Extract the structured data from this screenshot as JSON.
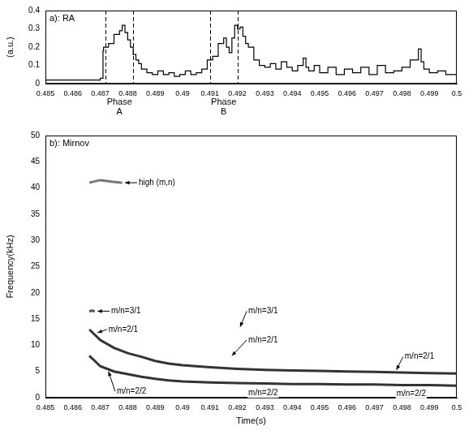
{
  "chart_data": [
    {
      "type": "line",
      "title": "a): RA",
      "y_label": "(a.u.)",
      "x": [
        0.485,
        0.4855,
        0.486,
        0.4865,
        0.487,
        0.4871,
        0.48712,
        0.4873,
        0.4875,
        0.4877,
        0.4878,
        0.4879,
        0.488,
        0.4881,
        0.4882,
        0.4883,
        0.4884,
        0.4885,
        0.4887,
        0.4889,
        0.4891,
        0.4893,
        0.4895,
        0.4897,
        0.4899,
        0.4901,
        0.4903,
        0.4905,
        0.4907,
        0.4909,
        0.4911,
        0.4913,
        0.4915,
        0.4916,
        0.4917,
        0.4918,
        0.4919,
        0.492,
        0.4921,
        0.4922,
        0.4923,
        0.4924,
        0.4926,
        0.4928,
        0.493,
        0.4932,
        0.4934,
        0.4936,
        0.4938,
        0.494,
        0.4942,
        0.4944,
        0.4945,
        0.4946,
        0.4948,
        0.495,
        0.4953,
        0.4956,
        0.4959,
        0.4962,
        0.4965,
        0.4968,
        0.4971,
        0.4974,
        0.4977,
        0.498,
        0.4983,
        0.4986,
        0.4987,
        0.4988,
        0.499,
        0.4993,
        0.4996,
        0.5
      ],
      "values": [
        0.02,
        0.02,
        0.02,
        0.02,
        0.02,
        0.03,
        0.18,
        0.2,
        0.22,
        0.27,
        0.29,
        0.32,
        0.28,
        0.24,
        0.2,
        0.16,
        0.13,
        0.11,
        0.08,
        0.06,
        0.05,
        0.07,
        0.05,
        0.06,
        0.04,
        0.05,
        0.07,
        0.05,
        0.06,
        0.08,
        0.13,
        0.15,
        0.22,
        0.25,
        0.2,
        0.17,
        0.25,
        0.32,
        0.3,
        0.31,
        0.26,
        0.22,
        0.2,
        0.13,
        0.1,
        0.09,
        0.11,
        0.08,
        0.12,
        0.09,
        0.07,
        0.1,
        0.14,
        0.09,
        0.07,
        0.1,
        0.06,
        0.09,
        0.05,
        0.08,
        0.06,
        0.09,
        0.05,
        0.1,
        0.06,
        0.07,
        0.09,
        0.13,
        0.19,
        0.12,
        0.08,
        0.06,
        0.07,
        0.05
      ],
      "color": "#000000",
      "line_style": "steps",
      "xlim": [
        0.485,
        0.5
      ],
      "xticks": [
        0.485,
        0.486,
        0.487,
        0.488,
        0.489,
        0.49,
        0.491,
        0.492,
        0.493,
        0.494,
        0.495,
        0.496,
        0.497,
        0.498,
        0.499,
        0.5
      ],
      "ylim": [
        0,
        0.4
      ],
      "yticks": [
        0,
        0.1,
        0.2,
        0.3,
        0.4
      ],
      "grid": false,
      "spans": [
        {
          "label": "Phase A",
          "from": 0.4872,
          "to": 0.4882
        },
        {
          "label": "Phase B",
          "from": 0.491,
          "to": 0.492
        }
      ]
    },
    {
      "type": "line",
      "title": "b): Mirnov",
      "x_label": "Time(s)",
      "y_label": "Frequency(kHz)",
      "series": [
        {
          "color": "#333333",
          "x": [
            0.4866,
            0.4868,
            0.487,
            0.4875,
            0.488,
            0.4885,
            0.489,
            0.4895,
            0.49,
            0.491,
            0.492,
            0.493,
            0.494,
            0.495,
            0.496,
            0.497,
            0.498,
            0.499,
            0.5
          ],
          "values": [
            13,
            12,
            11,
            9.5,
            8.5,
            7.8,
            7,
            6.5,
            6.2,
            5.8,
            5.5,
            5.3,
            5.2,
            5.1,
            5,
            4.9,
            4.8,
            4.7,
            4.6
          ]
        },
        {
          "color": "#333333",
          "x": [
            0.4866,
            0.4868,
            0.487,
            0.4875,
            0.488,
            0.4885,
            0.489,
            0.4895,
            0.49,
            0.491,
            0.492,
            0.493,
            0.494,
            0.495,
            0.496,
            0.497,
            0.498,
            0.499,
            0.5
          ],
          "values": [
            8,
            7,
            6,
            5,
            4.5,
            4,
            3.6,
            3.3,
            3.1,
            2.9,
            2.8,
            2.7,
            2.6,
            2.6,
            2.5,
            2.5,
            2.4,
            2.4,
            2.3
          ]
        },
        {
          "color": "#555555",
          "x": [
            0.4866,
            0.4867,
            0.4868
          ],
          "values": [
            16.5,
            16.6,
            16.5
          ]
        },
        {
          "color": "#777777",
          "x": [
            0.4866,
            0.487,
            0.4874,
            0.4878
          ],
          "values": [
            41,
            41.5,
            41.2,
            41
          ]
        }
      ],
      "xlim": [
        0.485,
        0.5
      ],
      "xticks": [
        0.485,
        0.486,
        0.487,
        0.488,
        0.489,
        0.49,
        0.491,
        0.492,
        0.493,
        0.494,
        0.495,
        0.496,
        0.497,
        0.498,
        0.499,
        0.5
      ],
      "ylim": [
        0,
        50
      ],
      "yticks": [
        0,
        5,
        10,
        15,
        20,
        25,
        30,
        35,
        40,
        45,
        50
      ],
      "grid": false,
      "annotations": [
        {
          "text": "high (m,n)",
          "x": 0.4884,
          "y": 41,
          "to": [
            0.4879,
            41
          ]
        },
        {
          "text": "m/n=3/1",
          "x": 0.4874,
          "y": 16.5,
          "to": [
            0.4869,
            16.5
          ]
        },
        {
          "text": "m/n=2/1",
          "x": 0.4873,
          "y": 13,
          "to": [
            0.4869,
            12.4
          ]
        },
        {
          "text": "m/n=2/2",
          "x": 0.4876,
          "y": 1.2,
          "to": [
            0.4873,
            5.0
          ]
        },
        {
          "text": "m/n=3/1",
          "x": 0.4924,
          "y": 16.5,
          "to": [
            0.4921,
            13.5
          ]
        },
        {
          "text": "m/n=2/1",
          "x": 0.4924,
          "y": 11,
          "to": [
            0.4918,
            8
          ]
        },
        {
          "text": "m/n=2/2",
          "x": 0.4924,
          "y": 0.9
        },
        {
          "text": "m/n=2/1",
          "x": 0.4981,
          "y": 7.8,
          "to": [
            0.4978,
            5.3
          ]
        },
        {
          "text": "m/n=2/2",
          "x": 0.4978,
          "y": 0.8
        }
      ]
    }
  ]
}
